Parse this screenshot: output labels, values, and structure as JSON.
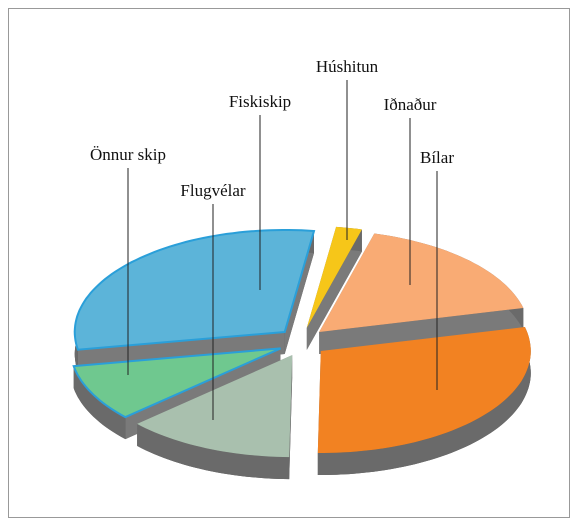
{
  "chart_data": {
    "type": "pie",
    "categories": [
      "Húshitun",
      "Iðnaður",
      "Bílar",
      "Flugvélar",
      "Önnur skip",
      "Fiskiskip"
    ],
    "values": [
      2,
      17,
      29,
      13,
      9,
      30
    ],
    "colors": [
      "#f6c619",
      "#f9ab74",
      "#f28222",
      "#a9c0ae",
      "#6fc88f",
      "#5cb4d9"
    ]
  }
}
